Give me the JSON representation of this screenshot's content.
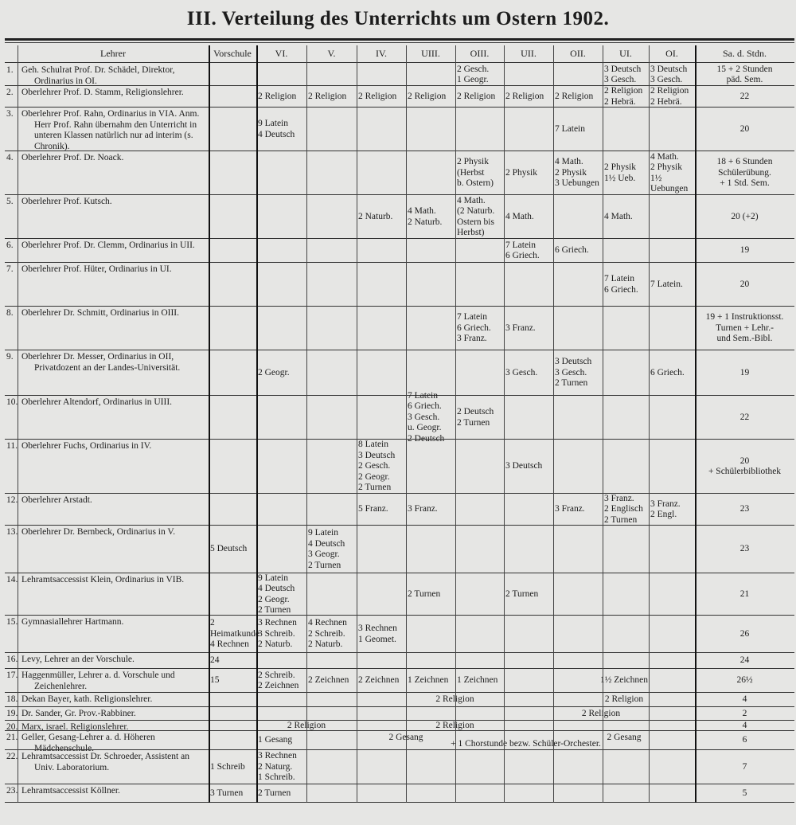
{
  "title": "III. Verteilung des Unterrichts um Ostern 1902.",
  "columns": [
    {
      "key": "nr",
      "label": ""
    },
    {
      "key": "lehrer",
      "label": "Lehrer"
    },
    {
      "key": "vorschule",
      "label": "Vorschule"
    },
    {
      "key": "VI",
      "label": "VI."
    },
    {
      "key": "V",
      "label": "V."
    },
    {
      "key": "IV",
      "label": "IV."
    },
    {
      "key": "UIII",
      "label": "UIII."
    },
    {
      "key": "OIII",
      "label": "OIII."
    },
    {
      "key": "UII",
      "label": "UII."
    },
    {
      "key": "OII",
      "label": "OII."
    },
    {
      "key": "UI",
      "label": "UI."
    },
    {
      "key": "OI",
      "label": "OI."
    },
    {
      "key": "sa",
      "label": "Sa. d. Stdn."
    }
  ],
  "rows": [
    {
      "nr": "1.",
      "lehrer": "Geh. Schulrat Prof. Dr. Schädel, Direktor, Ordinarius in OI.",
      "cells": {
        "OIII": "2 Gesch.\n1 Geogr.",
        "UI": "3 Deutsch\n3 Gesch.",
        "OI": "3 Deutsch\n3 Gesch.",
        "sa": "15 + 2 Stunden\npäd. Sem."
      }
    },
    {
      "nr": "2.",
      "lehrer": "Oberlehrer Prof. D. Stamm, Religionslehrer.",
      "cells": {
        "VI": "2 Religion",
        "V": "2 Religion",
        "IV": "2 Religion",
        "UIII": "2 Religion",
        "OIII": "2 Religion",
        "UII": "2 Religion",
        "OII": "2 Religion",
        "UI": "2 Religion\n2 Hebrä.",
        "OI": "2 Religion\n2 Hebrä.",
        "sa": "22"
      }
    },
    {
      "nr": "3.",
      "lehrer": "Oberlehrer Prof. Rahn, Ordinarius in VIA. Anm. Herr Prof. Rahn übernahm den Unterricht in unteren Klassen natürlich nur ad interim (s. Chronik).",
      "cells": {
        "VI": "9 Latein\n4 Deutsch",
        "OII": "7 Latein",
        "sa": "20"
      }
    },
    {
      "nr": "4.",
      "lehrer": "Oberlehrer Prof. Dr. Noack.",
      "cells": {
        "OIII": "2 Physik\n(Herbst\nb. Ostern)",
        "UII": "2 Physik",
        "OII": "4 Math.\n2 Physik\n3 Uebungen",
        "UI": "2 Physik\n1½ Ueb.",
        "OI": "4 Math.\n2 Physik\n1½ Uebungen",
        "sa": "18 + 6 Stunden\nSchülerübung.\n+ 1 Std. Sem."
      }
    },
    {
      "nr": "5.",
      "lehrer": "Oberlehrer Prof. Kutsch.",
      "cells": {
        "IV": "2 Naturb.",
        "UIII": "4 Math.\n2 Naturb.",
        "OIII": "4 Math.\n(2 Naturb.\nOstern bis\nHerbst)",
        "UII": "4 Math.",
        "UI": "4 Math.",
        "sa": "20 (+2)"
      }
    },
    {
      "nr": "6.",
      "lehrer": "Oberlehrer Prof. Dr. Clemm, Ordinarius in UII.",
      "cells": {
        "UII": "7 Latein\n6 Griech.",
        "OII": "6 Griech.",
        "sa": "19"
      }
    },
    {
      "nr": "7.",
      "lehrer": "Oberlehrer Prof. Hüter, Ordinarius in UI.",
      "cells": {
        "UI": "7 Latein\n6 Griech.",
        "OI": "7 Latein.",
        "sa": "20"
      }
    },
    {
      "nr": "8.",
      "lehrer": "Oberlehrer Dr. Schmitt, Ordinarius in OIII.",
      "cells": {
        "OIII": "7 Latein\n6 Griech.\n3 Franz.",
        "UII": "3 Franz.",
        "sa": "19 + 1 Instruktionsst.\nTurnen + Lehr.-\nund Sem.-Bibl."
      }
    },
    {
      "nr": "9.",
      "lehrer": "Oberlehrer Dr. Messer, Ordinarius in OII, Privatdozent an der Landes-Universität.",
      "cells": {
        "VI": "2 Geogr.",
        "UII": "3 Gesch.",
        "OII": "3 Deutsch\n3 Gesch.\n2 Turnen",
        "OI": "6 Griech.",
        "sa": "19"
      }
    },
    {
      "nr": "10.",
      "lehrer": "Oberlehrer Altendorf, Ordinarius in UIII.",
      "cells": {
        "UIII": "7 Latein\n6 Griech.\n3 Gesch.\nu. Geogr.\n2 Deutsch",
        "OIII": "2 Deutsch\n2 Turnen",
        "sa": "22"
      }
    },
    {
      "nr": "11.",
      "lehrer": "Oberlehrer Fuchs, Ordinarius in IV.",
      "cells": {
        "IV": "8 Latein\n3 Deutsch\n2 Gesch.\n2 Geogr.\n2 Turnen",
        "UII": "3 Deutsch",
        "sa": "20\n+ Schülerbibliothek"
      }
    },
    {
      "nr": "12.",
      "lehrer": "Oberlehrer Arstadt.",
      "cells": {
        "IV": "5 Franz.",
        "UIII": "3 Franz.",
        "OII": "3 Franz.",
        "UI": "3 Franz.\n2 Englisch\n2 Turnen",
        "OI": "3 Franz.\n2 Engl.",
        "sa": "23"
      }
    },
    {
      "nr": "13.",
      "lehrer": "Oberlehrer Dr. Bernbeck, Ordinarius in V.",
      "cells": {
        "vorschule": "5 Deutsch",
        "V": "9 Latein\n4 Deutsch\n3 Geogr.\n2 Turnen",
        "sa": "23"
      }
    },
    {
      "nr": "14.",
      "lehrer": "Lehramtsaccessist Klein, Ordinarius in VIB.",
      "cells": {
        "VI": "9 Latein\n4 Deutsch\n2 Geogr.\n2 Turnen",
        "UIII": "2 Turnen",
        "UII": "2 Turnen",
        "sa": "21"
      }
    },
    {
      "nr": "15.",
      "lehrer": "Gymnasiallehrer Hartmann.",
      "cells": {
        "vorschule": "2 Heimatkunde\n4 Rechnen",
        "VI": "3 Rechnen\n3 Schreib.\n2 Naturb.",
        "V": "4 Rechnen\n2 Schreib.\n2 Naturb.",
        "IV": "3 Rechnen\n1 Geomet.",
        "sa": "26"
      }
    },
    {
      "nr": "16.",
      "lehrer": "Levy, Lehrer an der Vorschule.",
      "cells": {
        "vorschule": "24",
        "sa": "24"
      }
    },
    {
      "nr": "17.",
      "lehrer": "Haggenmüller, Lehrer a. d. Vorschule und Zeichenlehrer.",
      "cells": {
        "vorschule": "15",
        "VI": "2 Schreib.\n2 Zeichnen",
        "V": "2 Zeichnen",
        "IV": "2 Zeichnen",
        "UIII": "1 Zeichnen",
        "OIII": "1 Zeichnen",
        "sa": "26½"
      },
      "spans": [
        {
          "from": "OII",
          "to": "OI",
          "text": "1½ Zeichnen"
        }
      ]
    },
    {
      "nr": "18.",
      "lehrer": "Dekan Bayer, kath. Religionslehrer.",
      "cells": {
        "sa": "4"
      },
      "spans": [
        {
          "from": "UIII",
          "to": "OIII",
          "text": "2 Religion"
        },
        {
          "from": "OII",
          "to": "OI",
          "text": "2 Religion"
        }
      ]
    },
    {
      "nr": "19.",
      "lehrer": "Dr. Sander, Gr. Prov.-Rabbiner.",
      "cells": {
        "sa": "2"
      },
      "spans": [
        {
          "from": "OII",
          "to": "UI",
          "text": "2 Religion"
        }
      ]
    },
    {
      "nr": "20.",
      "lehrer": "Marx, israel. Religionslehrer.",
      "cells": {
        "sa": "4"
      },
      "spans": [
        {
          "from": "VI",
          "to": "V",
          "text": "2 Religion"
        },
        {
          "from": "UIII",
          "to": "OIII",
          "text": "2 Religion"
        }
      ]
    },
    {
      "nr": "21.",
      "lehrer": "Geller, Gesang-Lehrer a. d. Höheren Mädchenschule.",
      "cells": {
        "VI": "1 Gesang",
        "sa": "6"
      },
      "spans": [
        {
          "from": "IV",
          "to": "UIII",
          "text": "2 Gesang",
          "v": "top"
        },
        {
          "from": "OII",
          "to": "OI",
          "text": "2 Gesang",
          "v": "top"
        },
        {
          "from": "IV",
          "to": "OI",
          "text": "+ 1 Chorstunde bezw. Schüler-Orchester.",
          "v": "bottom"
        }
      ]
    },
    {
      "nr": "22.",
      "lehrer": "Lehramtsaccessist Dr. Schroeder, Assistent an Univ. Laboratorium.",
      "cells": {
        "vorschule": "1 Schreib",
        "VI": "3 Rechnen\n2 Naturg.\n1 Schreib.",
        "sa": "7"
      }
    },
    {
      "nr": "23.",
      "lehrer": "Lehramtsaccessist Köllner.",
      "cells": {
        "vorschule": "3 Turnen",
        "VI": "2 Turnen",
        "sa": "5"
      }
    }
  ]
}
